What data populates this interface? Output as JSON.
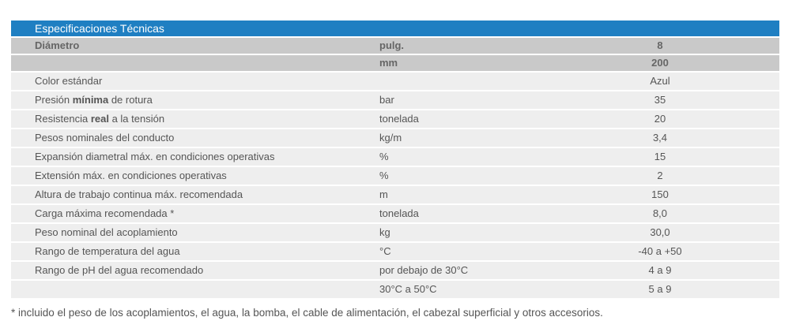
{
  "table": {
    "title": "Especificaciones Técnicas",
    "header": [
      {
        "label": "Diámetro",
        "unit": "pulg.",
        "value": "8"
      },
      {
        "label": "",
        "unit": "mm",
        "value": "200"
      }
    ],
    "rows": [
      {
        "pre": "Color estándar",
        "bold": "",
        "post": "",
        "unit": "",
        "value": "Azul"
      },
      {
        "pre": "Presión ",
        "bold": "mínima",
        "post": " de rotura",
        "unit": "bar",
        "value": "35"
      },
      {
        "pre": "Resistencia ",
        "bold": "real",
        "post": " a la tensión",
        "unit": "tonelada",
        "value": "20"
      },
      {
        "pre": "Pesos nominales del conducto",
        "bold": "",
        "post": "",
        "unit": "kg/m",
        "value": "3,4"
      },
      {
        "pre": "Expansión diametral máx. en condiciones operativas",
        "bold": "",
        "post": "",
        "unit": "%",
        "value": "15"
      },
      {
        "pre": "Extensión máx. en condiciones operativas",
        "bold": "",
        "post": "",
        "unit": "%",
        "value": "2"
      },
      {
        "pre": "Altura de trabajo continua máx. recomendada",
        "bold": "",
        "post": "",
        "unit": "m",
        "value": "150"
      },
      {
        "pre": "Carga máxima recomendada *",
        "bold": "",
        "post": "",
        "unit": "tonelada",
        "value": "8,0"
      },
      {
        "pre": "Peso nominal del acoplamiento",
        "bold": "",
        "post": "",
        "unit": "kg",
        "value": "30,0"
      },
      {
        "pre": "Rango de temperatura del agua",
        "bold": "",
        "post": "",
        "unit": "°C",
        "value": "-40 a +50"
      },
      {
        "pre": "Rango de pH del agua recomendado",
        "bold": "",
        "post": "",
        "unit": "por debajo de 30°C",
        "value": "4 a 9"
      },
      {
        "pre": "",
        "bold": "",
        "post": "",
        "unit": "30°C a 50°C",
        "value": "5 a 9"
      }
    ]
  },
  "footnote": "* incluido el peso de los acoplamientos, el agua, la bomba, el cable de alimentación, el cabezal superficial y otros accesorios."
}
